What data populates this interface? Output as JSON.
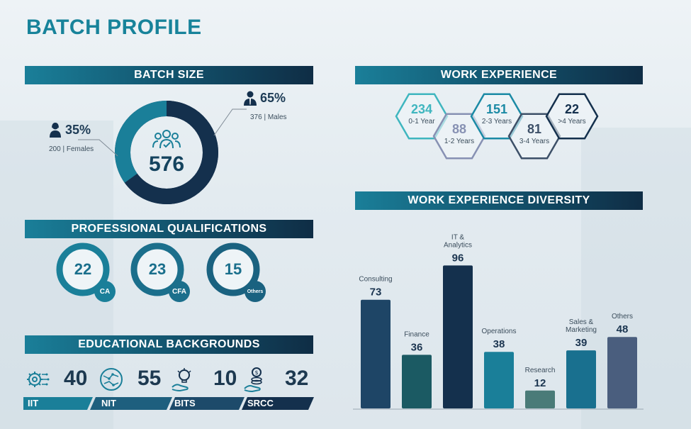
{
  "page_title": "BATCH PROFILE",
  "batch_size": {
    "heading": "BATCH SIZE",
    "total": "576",
    "females": {
      "pct": "35%",
      "sub": "200 | Females",
      "share": 0.35
    },
    "males": {
      "pct": "65%",
      "sub": "376 | Males",
      "share": 0.65
    },
    "colors": {
      "females": "#1a7f99",
      "males": "#14304d"
    }
  },
  "qualifications": {
    "heading": "PROFESSIONAL QUALIFICATIONS",
    "items": [
      {
        "value": "22",
        "label": "CA"
      },
      {
        "value": "23",
        "label": "CFA"
      },
      {
        "value": "15",
        "label": "Others"
      }
    ]
  },
  "education": {
    "heading": "EDUCATIONAL BACKGROUNDS",
    "items": [
      {
        "value": "40",
        "label": "IIT",
        "icon": "gear-network-icon"
      },
      {
        "value": "55",
        "label": "NIT",
        "icon": "circuit-globe-icon"
      },
      {
        "value": "10",
        "label": "BITS",
        "icon": "idea-hand-icon"
      },
      {
        "value": "32",
        "label": "SRCC",
        "icon": "coins-hand-icon"
      }
    ]
  },
  "work_experience": {
    "heading": "WORK EXPERIENCE",
    "items": [
      {
        "value": "234",
        "label": "0-1 Year",
        "color": "#3fb6bf"
      },
      {
        "value": "88",
        "label": "1-2 Years",
        "color": "#8791b3"
      },
      {
        "value": "151",
        "label": "2-3 Years",
        "color": "#1b8aa5"
      },
      {
        "value": "81",
        "label": "3-4 Years",
        "color": "#3d5068"
      },
      {
        "value": "22",
        "label": ">4 Years",
        "color": "#14304d"
      }
    ]
  },
  "diversity": {
    "heading": "WORK EXPERIENCE DIVERSITY",
    "chart_data": {
      "type": "bar",
      "categories": [
        [
          "Consulting"
        ],
        [
          "Finance"
        ],
        [
          "IT &",
          "Analytics"
        ],
        [
          "Operations"
        ],
        [
          "Research"
        ],
        [
          "Sales &",
          "Marketing"
        ],
        [
          "Others"
        ]
      ],
      "values": [
        73,
        36,
        96,
        38,
        12,
        39,
        48
      ],
      "colors": [
        "#1e4566",
        "#1b5a63",
        "#14304d",
        "#1a7f99",
        "#4a7b78",
        "#19708f",
        "#4a5e7e"
      ],
      "ylim": [
        0,
        100
      ]
    }
  }
}
